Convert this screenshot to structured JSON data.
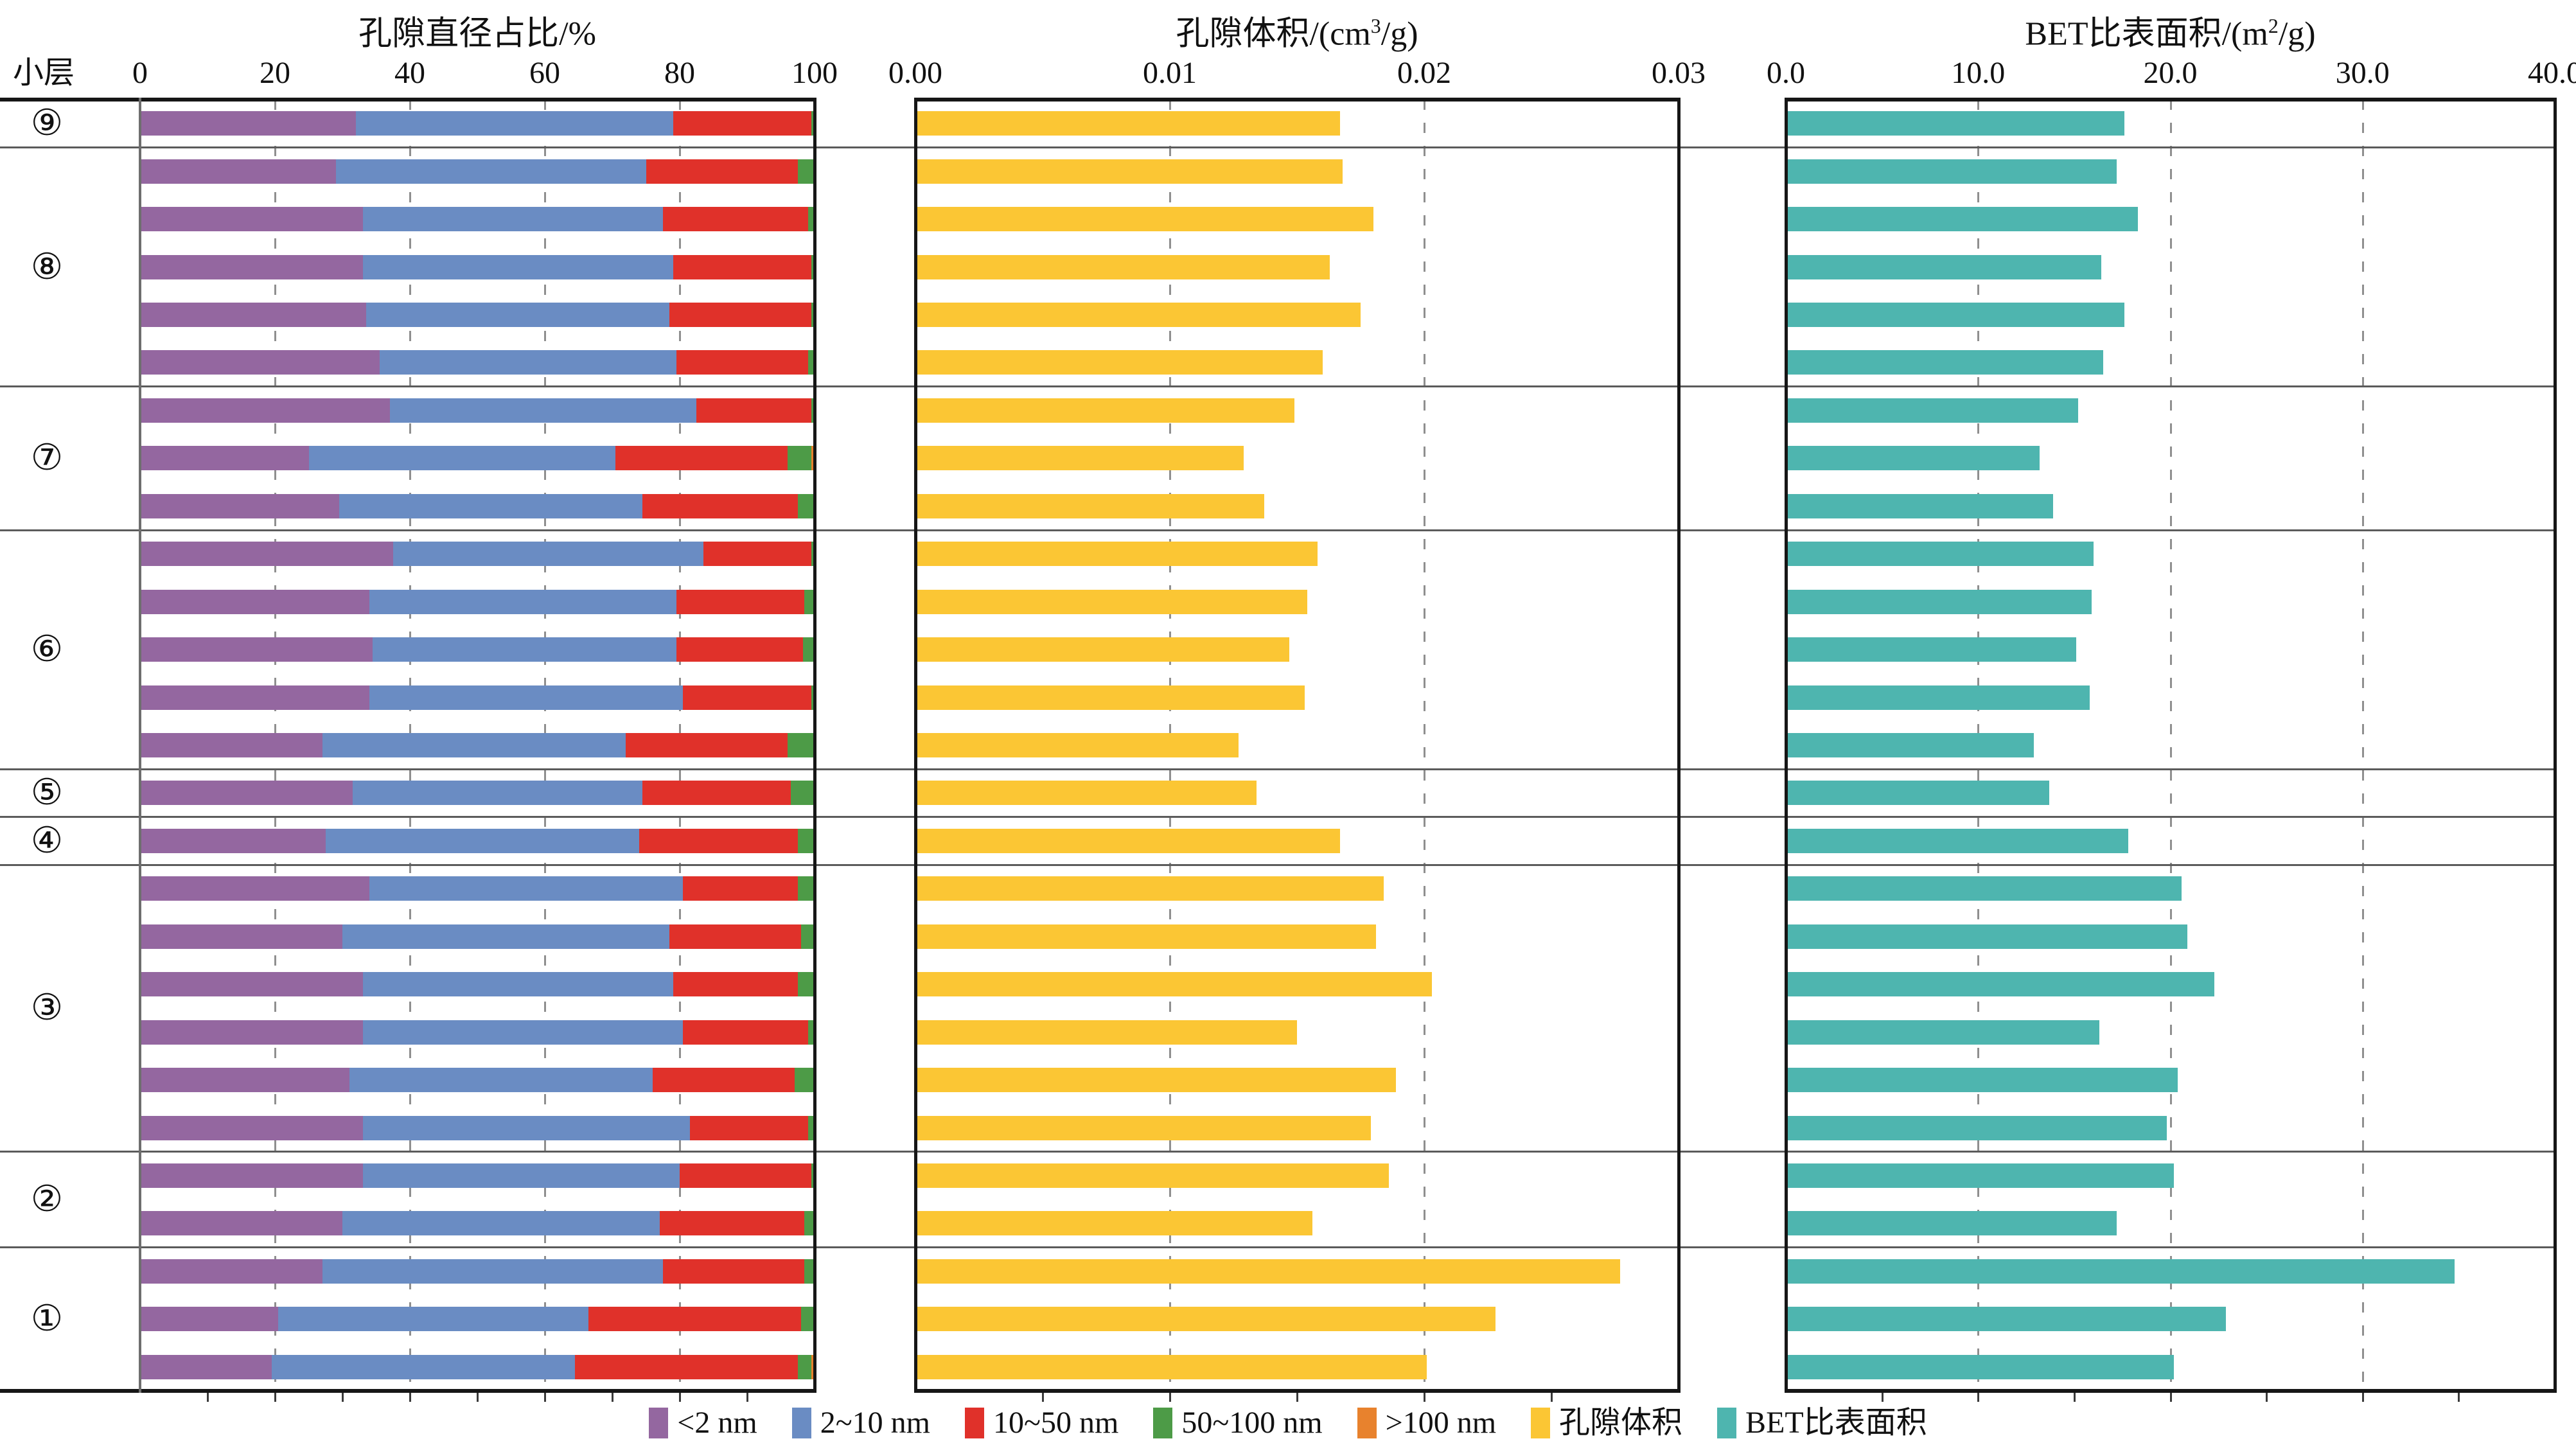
{
  "chart_data": {
    "type": "bar",
    "description": "Three aligned horizontal bar panels per sub-layer sample: stacked pore-diameter percentage, pore volume, BET specific surface area",
    "row_axis_label": "小层",
    "panels": [
      {
        "id": "pore-diameter-percent",
        "title_pre": "孔隙直径占比/%",
        "title_sup": "",
        "title_post": "",
        "ticks": [
          "0",
          "20",
          "40",
          "60",
          "80",
          "100"
        ],
        "xlim": [
          0,
          100
        ],
        "grid": [
          20,
          40,
          60,
          80
        ],
        "minor_tick_step": 10,
        "kind": "stacked"
      },
      {
        "id": "pore-volume",
        "title_pre": "孔隙体积/(cm",
        "title_sup": "3",
        "title_post": "/g)",
        "ticks": [
          "0.00",
          "0.01",
          "0.02",
          "0.03"
        ],
        "xlim": [
          0,
          0.03
        ],
        "grid": [
          0.01,
          0.02
        ],
        "minor_tick_step": 0.005,
        "kind": "single",
        "color_key": "pore_volume"
      },
      {
        "id": "bet-surface-area",
        "title_pre": "BET比表面积/(m",
        "title_sup": "2",
        "title_post": "/g)",
        "ticks": [
          "0.0",
          "10.0",
          "20.0",
          "30.0",
          "40.0"
        ],
        "xlim": [
          0,
          40
        ],
        "grid": [
          10,
          20,
          30
        ],
        "minor_tick_step": 5,
        "kind": "single",
        "color_key": "bet"
      }
    ],
    "stack_series_order": [
      "lt2nm",
      "n2to10",
      "n10to50",
      "n50to100",
      "gt100"
    ],
    "colors": {
      "lt2nm": "#9467A0",
      "n2to10": "#6A8CC3",
      "n10to50": "#E0312A",
      "n50to100": "#4D9B47",
      "gt100": "#E8822D",
      "pore_volume": "#FBC634",
      "bet": "#4EB5AF"
    },
    "groups": [
      {
        "label": "⑨",
        "rows": [
          {
            "pct": [
              32,
              47,
              20.5,
              0.5,
              0
            ],
            "pv": 0.0167,
            "bet": 17.6
          }
        ]
      },
      {
        "label": "⑧",
        "rows": [
          {
            "pct": [
              29,
              46,
              22.5,
              2.5,
              0
            ],
            "pv": 0.0168,
            "bet": 17.2
          },
          {
            "pct": [
              33,
              44.5,
              21.5,
              1,
              0
            ],
            "pv": 0.018,
            "bet": 18.3
          },
          {
            "pct": [
              33,
              46,
              20.5,
              0.5,
              0
            ],
            "pv": 0.0163,
            "bet": 16.4
          },
          {
            "pct": [
              33.5,
              45,
              21,
              0.5,
              0
            ],
            "pv": 0.0175,
            "bet": 17.6
          },
          {
            "pct": [
              35.5,
              44,
              19.5,
              1,
              0
            ],
            "pv": 0.016,
            "bet": 16.5
          }
        ]
      },
      {
        "label": "⑦",
        "rows": [
          {
            "pct": [
              37,
              45.5,
              17,
              0.5,
              0
            ],
            "pv": 0.0149,
            "bet": 15.2
          },
          {
            "pct": [
              25,
              45.5,
              25.5,
              3.5,
              0.5
            ],
            "pv": 0.0129,
            "bet": 13.2
          },
          {
            "pct": [
              29.5,
              45,
              23,
              2.5,
              0
            ],
            "pv": 0.0137,
            "bet": 13.9
          }
        ]
      },
      {
        "label": "⑥",
        "rows": [
          {
            "pct": [
              37.5,
              46,
              16,
              0.5,
              0
            ],
            "pv": 0.0158,
            "bet": 16.0
          },
          {
            "pct": [
              34,
              45.5,
              19,
              1.5,
              0
            ],
            "pv": 0.0154,
            "bet": 15.9
          },
          {
            "pct": [
              34.5,
              45,
              18.8,
              1.7,
              0
            ],
            "pv": 0.0147,
            "bet": 15.1
          },
          {
            "pct": [
              34,
              46.5,
              19,
              0.5,
              0
            ],
            "pv": 0.0153,
            "bet": 15.8
          },
          {
            "pct": [
              27,
              45,
              24,
              4,
              0
            ],
            "pv": 0.0127,
            "bet": 12.9
          }
        ]
      },
      {
        "label": "⑤",
        "rows": [
          {
            "pct": [
              31.5,
              43,
              22,
              3.5,
              0
            ],
            "pv": 0.0134,
            "bet": 13.7
          }
        ]
      },
      {
        "label": "④",
        "rows": [
          {
            "pct": [
              27.5,
              46.5,
              23.5,
              2.5,
              0
            ],
            "pv": 0.0167,
            "bet": 17.8
          }
        ]
      },
      {
        "label": "③",
        "rows": [
          {
            "pct": [
              34,
              46.5,
              17,
              2.5,
              0
            ],
            "pv": 0.0184,
            "bet": 20.6
          },
          {
            "pct": [
              30,
              48.5,
              19.5,
              2,
              0
            ],
            "pv": 0.0181,
            "bet": 20.9
          },
          {
            "pct": [
              33,
              46,
              18.5,
              2.5,
              0
            ],
            "pv": 0.0203,
            "bet": 22.3
          },
          {
            "pct": [
              33,
              47.5,
              18.5,
              1,
              0
            ],
            "pv": 0.015,
            "bet": 16.3
          },
          {
            "pct": [
              31,
              45,
              21,
              3,
              0
            ],
            "pv": 0.0189,
            "bet": 20.4
          },
          {
            "pct": [
              33,
              48.5,
              17.5,
              1,
              0
            ],
            "pv": 0.0179,
            "bet": 19.8
          }
        ]
      },
      {
        "label": "②",
        "rows": [
          {
            "pct": [
              33,
              47,
              19.5,
              0.5,
              0
            ],
            "pv": 0.0186,
            "bet": 20.2
          },
          {
            "pct": [
              30,
              47,
              21.5,
              1.5,
              0
            ],
            "pv": 0.0156,
            "bet": 17.2
          }
        ]
      },
      {
        "label": "①",
        "rows": [
          {
            "pct": [
              27,
              50.5,
              21,
              1.5,
              0
            ],
            "pv": 0.0277,
            "bet": 34.8
          },
          {
            "pct": [
              20.5,
              46,
              31.5,
              2,
              0
            ],
            "pv": 0.0228,
            "bet": 22.9
          },
          {
            "pct": [
              19.5,
              45,
              33,
              2,
              0.5
            ],
            "pv": 0.0201,
            "bet": 20.2
          }
        ]
      }
    ],
    "legend": [
      {
        "label": "<2 nm",
        "color_key": "lt2nm"
      },
      {
        "label": "2~10 nm",
        "color_key": "n2to10"
      },
      {
        "label": "10~50 nm",
        "color_key": "n10to50"
      },
      {
        "label": "50~100 nm",
        "color_key": "n50to100"
      },
      {
        "label": ">100 nm",
        "color_key": "gt100"
      },
      {
        "label": "孔隙体积",
        "color_key": "pore_volume"
      },
      {
        "label": "BET比表面积",
        "color_key": "bet"
      }
    ]
  }
}
